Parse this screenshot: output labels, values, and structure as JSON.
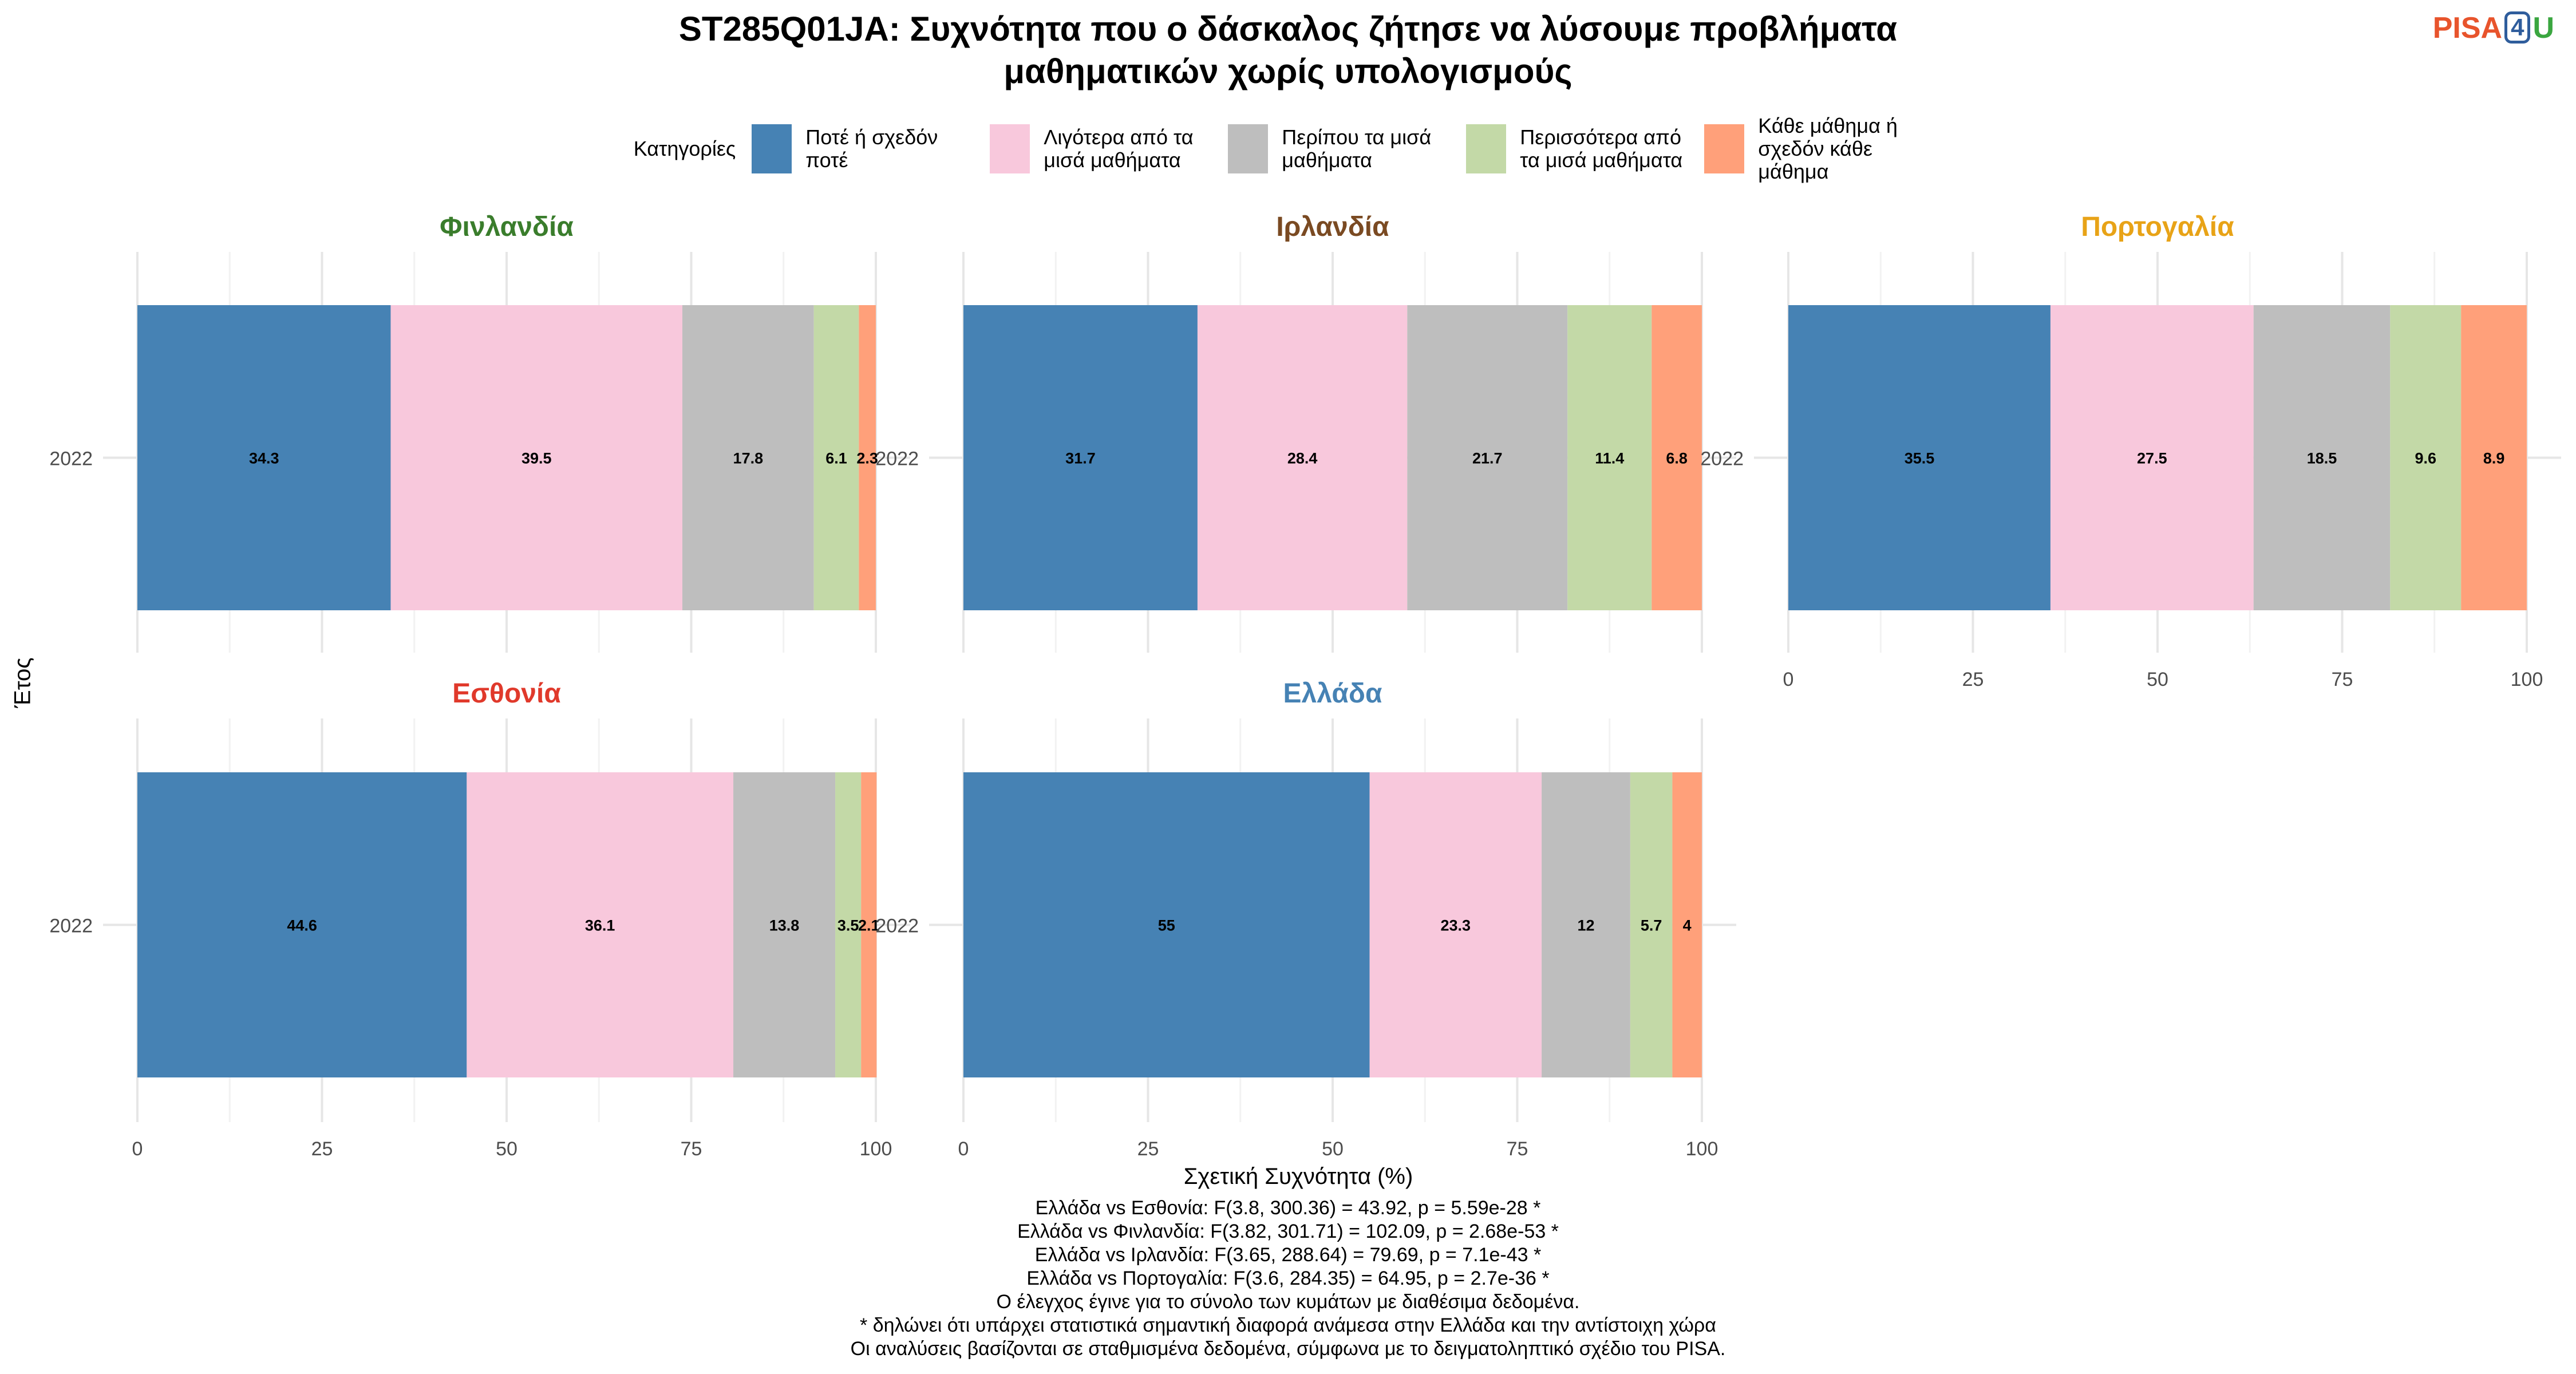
{
  "title_lines": [
    "ST285Q01JA: Συχνότητα που ο δάσκαλος ζήτησε να λύσουμε προβλήματα",
    "μαθηματικών χωρίς υπολογισμούς"
  ],
  "logo": {
    "pisa": "PISA",
    "four": "4",
    "u": "U"
  },
  "legend_title": "Κατηγορίες",
  "chart_data": {
    "type": "bar",
    "orientation": "horizontal-stacked",
    "xlabel": "Σχετική Συχνότητα (%)",
    "ylabel": "Έτος",
    "xlim": [
      0,
      100
    ],
    "x_ticks": [
      0,
      25,
      50,
      75,
      100
    ],
    "grid": true,
    "legend_position": "top",
    "categories": [
      {
        "name": "Ποτέ ή σχεδόν ποτέ",
        "color": "#4682B4"
      },
      {
        "name": "Λιγότερα από τα μισά μαθήματα",
        "color": "#F8C8DC"
      },
      {
        "name": "Περίπου τα μισά μαθήματα",
        "color": "#BEBEBE"
      },
      {
        "name": "Περισσότερα από τα μισά μαθήματα",
        "color": "#C3D9A7"
      },
      {
        "name": "Κάθε μάθημα ή σχεδόν κάθε μάθημα",
        "color": "#FFA07A"
      }
    ],
    "panels": [
      {
        "country": "Φινλανδία",
        "color": "#3a7d2c",
        "year": "2022",
        "values": [
          34.3,
          39.5,
          17.8,
          6.1,
          2.3
        ],
        "labels": [
          "34.3",
          "39.5",
          "17.8",
          "6.1",
          "2.3"
        ]
      },
      {
        "country": "Ιρλανδία",
        "color": "#7a4a22",
        "year": "2022",
        "values": [
          31.7,
          28.4,
          21.7,
          11.4,
          6.8
        ],
        "labels": [
          "31.7",
          "28.4",
          "21.7",
          "11.4",
          "6.8"
        ]
      },
      {
        "country": "Πορτογαλία",
        "color": "#e8a317",
        "year": "2022",
        "values": [
          35.5,
          27.5,
          18.5,
          9.6,
          8.9
        ],
        "labels": [
          "35.5",
          "27.5",
          "18.5",
          "9.6",
          "8.9"
        ]
      },
      {
        "country": "Εσθονία",
        "color": "#e0392b",
        "year": "2022",
        "values": [
          44.6,
          36.1,
          13.8,
          3.5,
          2.1
        ],
        "labels": [
          "44.6",
          "36.1",
          "13.8",
          "3.5",
          "2.1"
        ]
      },
      {
        "country": "Ελλάδα",
        "color": "#4682B4",
        "year": "2022",
        "values": [
          55,
          23.3,
          12,
          5.7,
          4
        ],
        "labels": [
          "55",
          "23.3",
          "12",
          "5.7",
          "4"
        ]
      }
    ]
  },
  "footer_lines": [
    "Ελλάδα vs Εσθονία: F(3.8, 300.36) = 43.92, p = 5.59e-28 *",
    "Ελλάδα vs Φινλανδία: F(3.82, 301.71) = 102.09, p = 2.68e-53 *",
    "Ελλάδα vs Ιρλανδία: F(3.65, 288.64) = 79.69, p = 7.1e-43 *",
    "Ελλάδα vs Πορτογαλία: F(3.6, 284.35) = 64.95, p = 2.7e-36 *",
    "Ο έλεγχος έγινε για το σύνολο των κυμάτων με διαθέσιμα δεδομένα.",
    "* δηλώνει ότι υπάρχει στατιστικά σημαντική διαφορά ανάμεσα στην Ελλάδα και την αντίστοιχη χώρα",
    "Οι αναλύσεις βασίζονται σε σταθμισμένα δεδομένα, σύμφωνα με το δειγματοληπτικό σχέδιο του PISA."
  ]
}
